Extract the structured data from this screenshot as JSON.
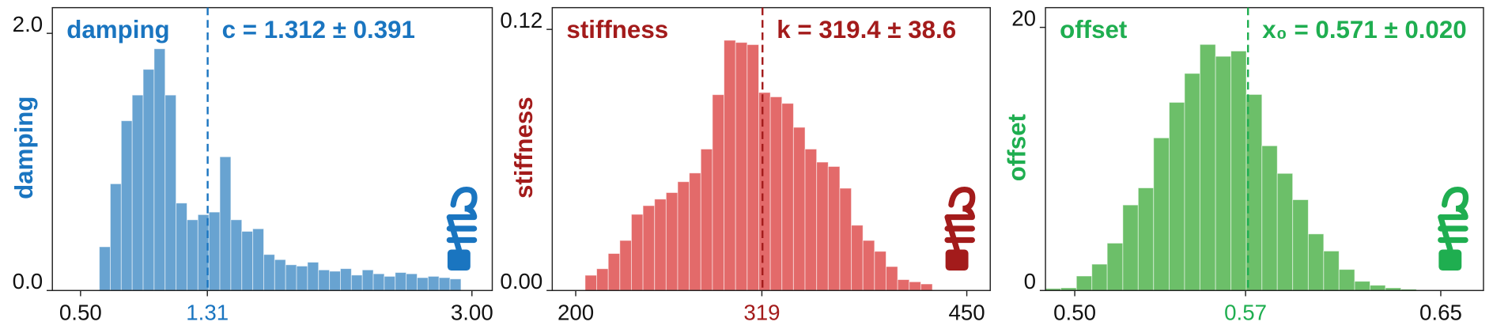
{
  "chart_data": [
    {
      "type": "histogram",
      "title": "damping",
      "ylabel": "damping",
      "annotation": "c = 1.312 ± 0.391",
      "mean": 1.312,
      "color": "#68a3d1",
      "text_color": "#1a75c0",
      "bins": [
        0.62,
        0.69,
        0.76,
        0.83,
        0.9,
        0.97,
        1.04,
        1.11,
        1.18,
        1.25,
        1.32,
        1.39,
        1.46,
        1.53,
        1.6,
        1.67,
        1.74,
        1.81,
        1.88,
        1.95,
        2.02,
        2.09,
        2.16,
        2.23,
        2.3,
        2.37,
        2.44,
        2.51,
        2.58,
        2.65,
        2.72,
        2.79,
        2.86,
        2.93
      ],
      "values": [
        0.34,
        0.83,
        1.32,
        1.52,
        1.72,
        1.88,
        1.52,
        0.68,
        0.55,
        0.59,
        0.61,
        1.04,
        0.55,
        0.46,
        0.48,
        0.28,
        0.24,
        0.2,
        0.19,
        0.22,
        0.16,
        0.15,
        0.17,
        0.12,
        0.16,
        0.13,
        0.11,
        0.14,
        0.13,
        0.1,
        0.11,
        0.1,
        0.09
      ],
      "xlim": [
        0.32,
        3.13
      ],
      "xticks": [
        {
          "value": 0.5,
          "label": "0.50"
        },
        1.31,
        {
          "value": 3,
          "label": "3.00"
        }
      ],
      "ylim": [
        0,
        2.2
      ],
      "yticks": [
        {
          "value": 0,
          "label": "0.0"
        },
        {
          "value": 2,
          "label": "2.0"
        }
      ]
    },
    {
      "type": "histogram",
      "title": "stiffness",
      "ylabel": "stiffness",
      "annotation": "k = 319.4 ± 38.6",
      "mean": 319.4,
      "color": "#e36a6a",
      "text_color": "#a31b1b",
      "bins": [
        206,
        213.4,
        220.8,
        228.2,
        235.6,
        243,
        250.4,
        257.8,
        265.2,
        272.6,
        280,
        287.4,
        294.8,
        302.2,
        309.6,
        317,
        324.4,
        331.8,
        339.2,
        346.6,
        354,
        361.4,
        368.8,
        376.2,
        383.6,
        391,
        398.4,
        405.8,
        413.2,
        420.6,
        428
      ],
      "values": [
        0.007,
        0.01,
        0.017,
        0.023,
        0.035,
        0.039,
        0.042,
        0.045,
        0.05,
        0.054,
        0.065,
        0.09,
        0.115,
        0.114,
        0.113,
        0.091,
        0.089,
        0.086,
        0.075,
        0.065,
        0.059,
        0.057,
        0.047,
        0.03,
        0.023,
        0.018,
        0.011,
        0.005,
        0.004,
        0.003
      ],
      "xlim": [
        185,
        465
      ],
      "xticks": [
        200,
        319,
        450
      ],
      "ylim": [
        0,
        0.13
      ],
      "yticks": [
        {
          "value": 0,
          "label": "0.00"
        },
        0.12
      ]
    },
    {
      "type": "histogram",
      "title": "offset",
      "ylabel": "offset",
      "annotation": "x₀ = 0.571 ± 0.020",
      "mean": 0.571,
      "color": "#6cbf69",
      "text_color": "#1fae50",
      "bins": [
        0.488,
        0.4943,
        0.5007,
        0.507,
        0.5133,
        0.5197,
        0.526,
        0.5323,
        0.5387,
        0.545,
        0.5513,
        0.5577,
        0.564,
        0.5703,
        0.5767,
        0.583,
        0.5893,
        0.5957,
        0.602,
        0.6083,
        0.6147,
        0.621,
        0.6273,
        0.6337,
        0.64
      ],
      "values": [
        0.15,
        0.2,
        1.1,
        2,
        3.6,
        6.5,
        7.8,
        11.6,
        14.3,
        16.5,
        18.7,
        17.8,
        18.2,
        14.9,
        11,
        8.9,
        6.9,
        4.3,
        3,
        1.6,
        0.7,
        0.4,
        0.2,
        0.1
      ],
      "xlim": [
        0.488,
        0.6675
      ],
      "xticks": [
        {
          "value": 0.5,
          "label": "0.50"
        },
        0.57,
        0.65
      ],
      "ylim": [
        0,
        21.5
      ],
      "yticks": [
        0,
        20
      ]
    }
  ]
}
